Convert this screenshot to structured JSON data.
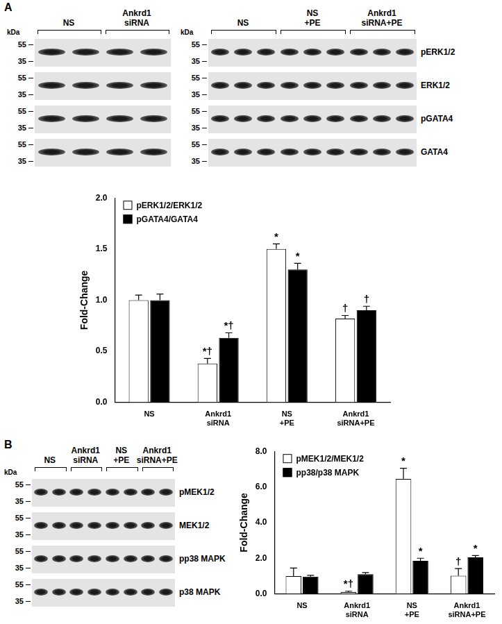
{
  "marker_unit": "kDa",
  "markers": [
    55,
    35
  ],
  "panels": [
    {
      "label": "A",
      "row_labels": [
        "pERK1/2",
        "ERK1/2",
        "pGATA4",
        "GATA4"
      ],
      "blots": [
        {
          "groups": [
            {
              "label": "NS",
              "lanes": 2
            },
            {
              "label": "Ankrd1 siRNA",
              "lanes": 2
            }
          ]
        },
        {
          "groups": [
            {
              "label": "NS",
              "lanes": 3
            },
            {
              "label": "NS +PE",
              "lanes": 3
            },
            {
              "label": "Ankrd1 siRNA+PE",
              "lanes": 3
            }
          ]
        }
      ]
    },
    {
      "label": "B",
      "row_labels": [
        "pMEK1/2",
        "MEK1/2",
        "pp38 MAPK",
        "p38 MAPK"
      ],
      "blots": [
        {
          "groups": [
            {
              "label": "NS",
              "lanes": 2
            },
            {
              "label": "Ankrd1 siRNA",
              "lanes": 2
            },
            {
              "label": "NS +PE",
              "lanes": 2
            },
            {
              "label": "Ankrd1 siRNA+PE",
              "lanes": 2
            }
          ]
        }
      ]
    }
  ],
  "chart_data": [
    {
      "type": "bar",
      "categories": [
        "NS",
        "Ankrd1 siRNA",
        "NS +PE",
        "Ankrd1 siRNA+PE"
      ],
      "y_label": "Fold-Change",
      "ylim": [
        0,
        2
      ],
      "yticks": [
        {
          "value": 0,
          "label": "0.0"
        },
        {
          "value": 0.5,
          "label": "0.5"
        },
        {
          "value": 1,
          "label": "1.0"
        },
        {
          "value": 1.5,
          "label": "1.5"
        },
        {
          "value": 2,
          "label": "2.0"
        }
      ],
      "grid": false,
      "legend": "upper left",
      "series": [
        {
          "name": "pERK1/2/ERK1/2",
          "color": "#ffffff",
          "values": [
            1.0,
            0.38,
            1.5,
            0.82
          ],
          "errors": [
            0.05,
            0.05,
            0.05,
            0.03
          ],
          "annotations": [
            null,
            "*†",
            "*",
            "†"
          ]
        },
        {
          "name": "pGATA4/GATA4",
          "color": "#000000",
          "values": [
            1.0,
            0.63,
            1.3,
            0.9
          ],
          "errors": [
            0.06,
            0.05,
            0.06,
            0.04
          ],
          "annotations": [
            null,
            "*†",
            "*",
            "†"
          ]
        }
      ]
    },
    {
      "type": "bar",
      "categories": [
        "NS",
        "Ankrd1 siRNA",
        "NS +PE",
        "Ankrd1 siRNA+PE"
      ],
      "y_label": "Fold-Change",
      "ylim": [
        0,
        8
      ],
      "yticks": [
        {
          "value": 0,
          "label": "0.0"
        },
        {
          "value": 2,
          "label": "2.0"
        },
        {
          "value": 4,
          "label": "4.0"
        },
        {
          "value": 6,
          "label": "6.0"
        },
        {
          "value": 8,
          "label": "8.0"
        }
      ],
      "grid": false,
      "legend": "upper left",
      "series": [
        {
          "name": "pMEK1/2/MEK1/2",
          "color": "#ffffff",
          "values": [
            1.0,
            0.1,
            6.45,
            1.02
          ],
          "errors": [
            0.45,
            0.05,
            0.6,
            0.4
          ],
          "annotations": [
            null,
            "*†",
            "*",
            "†"
          ]
        },
        {
          "name": "pp38/p38 MAPK",
          "color": "#000000",
          "values": [
            0.97,
            1.1,
            1.85,
            2.05
          ],
          "errors": [
            0.07,
            0.1,
            0.15,
            0.1
          ],
          "annotations": [
            null,
            null,
            "*",
            "*"
          ]
        }
      ]
    }
  ]
}
